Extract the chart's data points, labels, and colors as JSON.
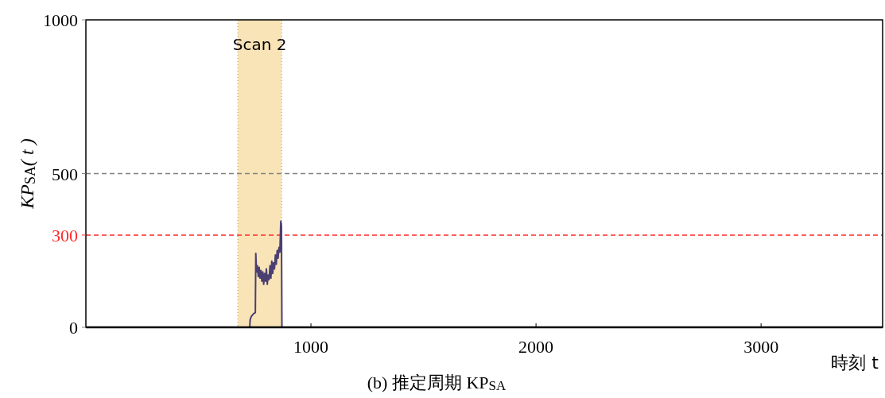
{
  "chart_data": {
    "type": "line",
    "title": "(b) 推定周期 KP$_{SA}$",
    "xlabel": "時刻 t",
    "ylabel": "KP$_{SA}$( t )",
    "xlim": [
      0,
      3540
    ],
    "ylim": [
      0,
      1000
    ],
    "xticks": [
      1000,
      2000,
      3000
    ],
    "yticks": [
      0,
      {
        "value": 300,
        "label": "300"
      },
      500,
      1000
    ],
    "series": [
      {
        "color": "#4b3f72",
        "x": [
          728,
          730,
          735,
          745,
          753,
          755,
          758,
          762,
          766,
          770,
          774,
          778,
          782,
          786,
          790,
          794,
          798,
          802,
          806,
          810,
          814,
          818,
          822,
          826,
          830,
          834,
          838,
          842,
          846,
          850,
          854,
          858,
          862,
          866,
          869,
          871
        ],
        "values": [
          0,
          25,
          35,
          44,
          48,
          240,
          180,
          200,
          165,
          195,
          160,
          185,
          150,
          180,
          140,
          175,
          150,
          190,
          140,
          170,
          155,
          200,
          160,
          215,
          175,
          210,
          190,
          235,
          205,
          250,
          225,
          260,
          245,
          345,
          330,
          0
        ]
      }
    ],
    "ref_lines": [
      {
        "axis": "x",
        "value": 675,
        "color": "#999999",
        "line_style": "dotted"
      },
      {
        "axis": "x",
        "value": 870,
        "color": "#999999",
        "line_style": "dotted"
      },
      {
        "axis": "y",
        "value": 500,
        "color": "#808080",
        "line_style": "dashed"
      },
      {
        "axis": "y",
        "value": 300,
        "color": "#ff2a2a",
        "line_style": "dashed"
      }
    ],
    "bands": [
      {
        "axis": "x",
        "from": 675,
        "to": 870,
        "label": "Scan 2",
        "color": "#f9e4b7"
      }
    ],
    "grid": false
  }
}
